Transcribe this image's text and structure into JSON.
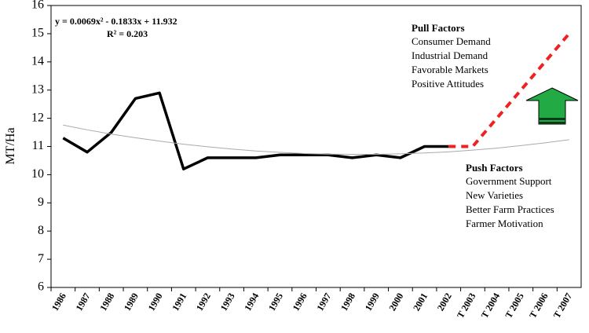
{
  "chart_data": {
    "type": "line",
    "ylabel": "MT/Ha",
    "categories": [
      "1986",
      "1987",
      "1988",
      "1989",
      "1990",
      "1991",
      "1992",
      "1993",
      "1994",
      "1995",
      "1996",
      "1997",
      "1998",
      "1999",
      "2000",
      "2001",
      "2002",
      "T 2003",
      "T 2004",
      "T 2005",
      "T 2006",
      "T 2007"
    ],
    "series": [
      {
        "color": "#000000",
        "style": "solid",
        "values": [
          11.3,
          10.8,
          11.5,
          12.7,
          12.9,
          10.2,
          10.6,
          10.6,
          10.6,
          10.7,
          10.7,
          10.7,
          10.6,
          10.7,
          10.6,
          11.0,
          11.0,
          null,
          null,
          null,
          null,
          null
        ]
      },
      {
        "color": "#ee2222",
        "style": "dashed",
        "values": [
          null,
          null,
          null,
          null,
          null,
          null,
          null,
          null,
          null,
          null,
          null,
          null,
          null,
          null,
          null,
          null,
          11.0,
          11.0,
          12.0,
          13.0,
          14.0,
          15.0
        ]
      },
      {
        "color": "#aaaaaa",
        "style": "trend",
        "values": [
          11.76,
          11.59,
          11.44,
          11.31,
          11.19,
          11.08,
          10.99,
          10.91,
          10.84,
          10.79,
          10.75,
          10.73,
          10.72,
          10.72,
          10.74,
          10.77,
          10.81,
          10.87,
          10.94,
          11.03,
          11.13,
          11.24
        ]
      }
    ],
    "ylim": [
      6,
      16
    ],
    "yticks": [
      6,
      7,
      8,
      9,
      10,
      11,
      12,
      13,
      14,
      15,
      16
    ],
    "annotations": {
      "equation": "y = 0.0069x² - 0.1833x + 11.932",
      "r_squared": "R² = 0.203",
      "pull": {
        "title": "Pull Factors",
        "items": [
          "Consumer Demand",
          "Industrial Demand",
          "Favorable Markets",
          "Positive Attitudes"
        ]
      },
      "push": {
        "title": "Push Factors",
        "items": [
          "Government Support",
          "New Varieties",
          "Better Farm Practices",
          "Farmer Motivation"
        ]
      }
    }
  }
}
